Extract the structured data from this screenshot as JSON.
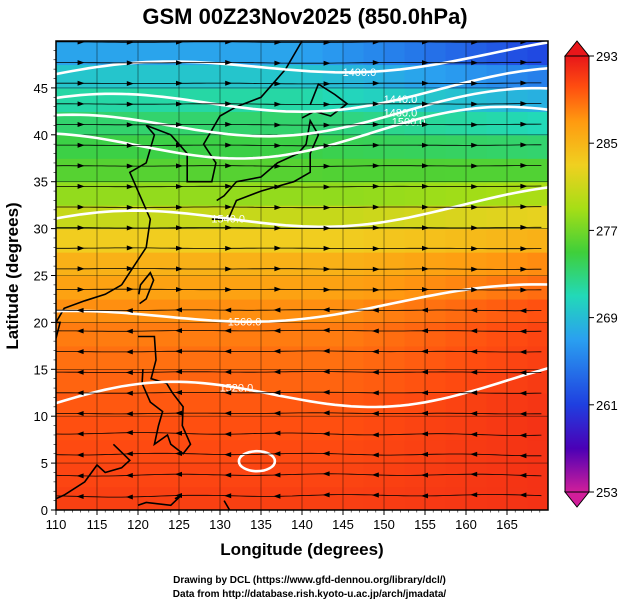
{
  "chart_data": {
    "type": "heatmap",
    "title": "GSM 00Z23Nov2025 (850.0hPa)",
    "xlabel": "Longitude (degrees)",
    "ylabel": "Latitude  (degrees)",
    "xlim": [
      110,
      170
    ],
    "ylim": [
      0,
      50
    ],
    "xticks": [
      "110",
      "115",
      "120",
      "125",
      "130",
      "135",
      "140",
      "145",
      "150",
      "155",
      "160",
      "165"
    ],
    "yticks": [
      "0",
      "5",
      "10",
      "15",
      "20",
      "25",
      "30",
      "35",
      "40",
      "45"
    ],
    "colorbar": {
      "labels": [
        "293",
        "285",
        "277",
        "269",
        "261",
        "253"
      ],
      "range": [
        253,
        293
      ],
      "colors": [
        "#d11e9a",
        "#4b00b6",
        "#1f3fe0",
        "#2aa0f0",
        "#22d9b8",
        "#3fcf3a",
        "#a6de16",
        "#f0d020",
        "#ff9a10",
        "#ff4d10",
        "#e8161a"
      ]
    },
    "contours": [
      {
        "label": "1400.0",
        "lon": 147
      },
      {
        "label": "1440.0",
        "lon": 152
      },
      {
        "label": "1480.0",
        "lon": 152
      },
      {
        "label": "1500.0",
        "lon": 153
      },
      {
        "label": "1540.0",
        "lon": 131
      },
      {
        "label": "1560.0",
        "lon": 133
      },
      {
        "label": "1520.0",
        "lon": 132
      }
    ],
    "temperature_profile_by_lat": [
      {
        "lat": 0,
        "t": 291
      },
      {
        "lat": 10,
        "t": 290
      },
      {
        "lat": 20,
        "t": 288
      },
      {
        "lat": 27,
        "t": 285
      },
      {
        "lat": 31,
        "t": 281
      },
      {
        "lat": 36,
        "t": 276
      },
      {
        "lat": 42,
        "t": 273
      },
      {
        "lat": 47,
        "t": 269
      },
      {
        "lat": 50,
        "t": 266
      }
    ]
  },
  "footer": {
    "line1": "Drawing by DCL (https://www.gfd-dennou.org/library/dcl/)",
    "line2": "Data from http://database.rish.kyoto-u.ac.jp/arch/jmadata/"
  }
}
